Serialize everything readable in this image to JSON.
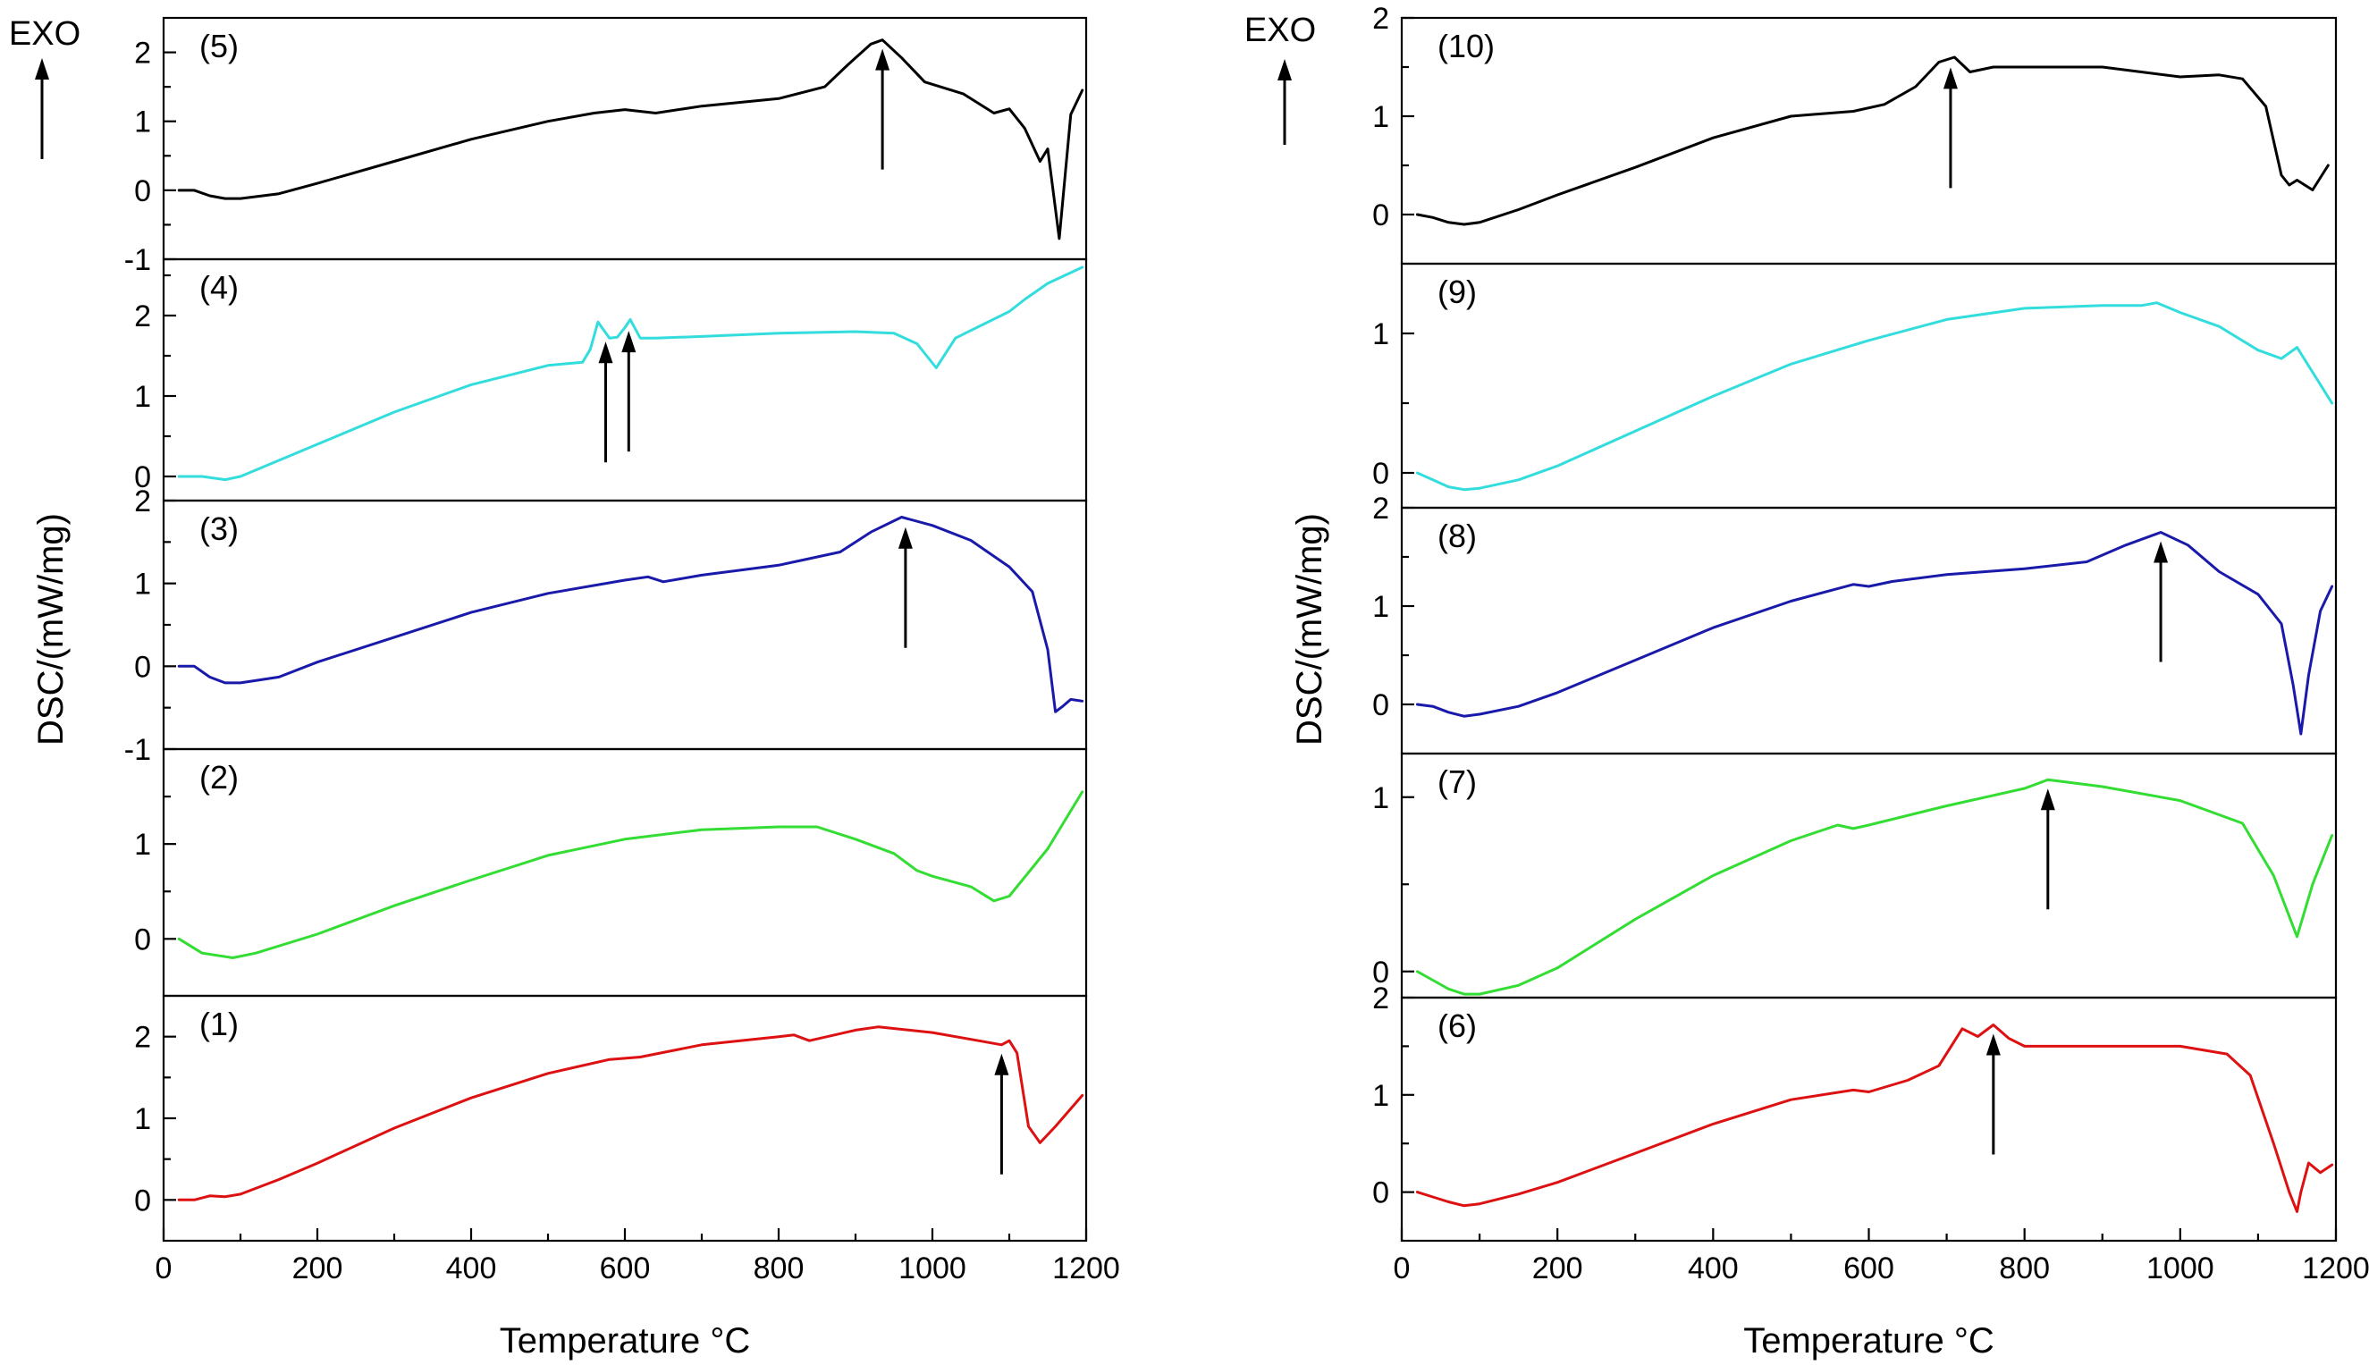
{
  "chart_data": [
    {
      "type": "line",
      "exo_label": "EXO",
      "xlabel": "Temperature °C",
      "ylabel": "DSC/(mW/mg)",
      "xlim": [
        0,
        1200
      ],
      "xticks": [
        "0",
        "200",
        "400",
        "600",
        "800",
        "1000",
        "1200"
      ],
      "panels": [
        {
          "label": "(5)",
          "color": "#000000",
          "ylim": [
            -1,
            2.5
          ],
          "yticks": [
            "-1",
            "0",
            "1",
            "2"
          ],
          "x": [
            20,
            40,
            60,
            80,
            100,
            150,
            200,
            300,
            400,
            500,
            560,
            600,
            640,
            700,
            800,
            860,
            890,
            920,
            935,
            960,
            990,
            1040,
            1080,
            1100,
            1120,
            1140,
            1150,
            1165,
            1180,
            1195
          ],
          "y": [
            0,
            0,
            -0.08,
            -0.12,
            -0.12,
            -0.05,
            0.1,
            0.42,
            0.74,
            1.0,
            1.12,
            1.17,
            1.12,
            1.22,
            1.33,
            1.5,
            1.82,
            2.12,
            2.18,
            1.92,
            1.57,
            1.4,
            1.12,
            1.18,
            0.9,
            0.42,
            0.6,
            -0.7,
            1.1,
            1.45
          ],
          "arrows": [
            935
          ]
        },
        {
          "label": "(4)",
          "color": "#33dddd",
          "ylim": [
            -0.3,
            2.7
          ],
          "yticks": [
            "0",
            "1",
            "2"
          ],
          "x": [
            20,
            50,
            80,
            100,
            150,
            200,
            300,
            400,
            500,
            545,
            555,
            565,
            580,
            590,
            600,
            607,
            620,
            640,
            700,
            800,
            900,
            950,
            980,
            1005,
            1030,
            1100,
            1120,
            1150,
            1195
          ],
          "y": [
            0,
            0,
            -0.04,
            0,
            0.2,
            0.4,
            0.8,
            1.14,
            1.38,
            1.42,
            1.58,
            1.92,
            1.72,
            1.73,
            1.85,
            1.95,
            1.72,
            1.72,
            1.74,
            1.78,
            1.8,
            1.78,
            1.65,
            1.35,
            1.72,
            2.05,
            2.2,
            2.4,
            2.6
          ],
          "arrows": [
            575,
            605
          ]
        },
        {
          "label": "(3)",
          "color": "#1a1aaa",
          "ylim": [
            -1,
            2
          ],
          "yticks": [
            "-1",
            "0",
            "1",
            "2"
          ],
          "x": [
            20,
            40,
            60,
            80,
            100,
            150,
            200,
            300,
            400,
            500,
            600,
            630,
            650,
            700,
            800,
            880,
            920,
            960,
            1000,
            1050,
            1100,
            1130,
            1150,
            1160,
            1170,
            1180,
            1195
          ],
          "y": [
            0,
            0,
            -0.13,
            -0.2,
            -0.2,
            -0.13,
            0.05,
            0.35,
            0.65,
            0.88,
            1.04,
            1.08,
            1.02,
            1.1,
            1.22,
            1.38,
            1.62,
            1.8,
            1.7,
            1.52,
            1.2,
            0.9,
            0.2,
            -0.55,
            -0.48,
            -0.4,
            -0.42
          ],
          "arrows": [
            965
          ]
        },
        {
          "label": "(2)",
          "color": "#33dd33",
          "ylim": [
            -0.6,
            2
          ],
          "yticks": [
            "0",
            "1"
          ],
          "x": [
            20,
            50,
            90,
            120,
            200,
            300,
            400,
            500,
            600,
            700,
            800,
            850,
            900,
            950,
            980,
            1000,
            1050,
            1080,
            1100,
            1150,
            1195
          ],
          "y": [
            0,
            -0.15,
            -0.2,
            -0.15,
            0.05,
            0.35,
            0.62,
            0.88,
            1.05,
            1.15,
            1.18,
            1.18,
            1.05,
            0.9,
            0.72,
            0.66,
            0.55,
            0.4,
            0.45,
            0.95,
            1.55
          ],
          "arrows": []
        },
        {
          "label": "(1)",
          "color": "#dd1111",
          "ylim": [
            -0.5,
            2.5
          ],
          "yticks": [
            "0",
            "1",
            "2"
          ],
          "x": [
            20,
            40,
            60,
            80,
            100,
            150,
            200,
            300,
            400,
            500,
            580,
            620,
            700,
            800,
            820,
            840,
            900,
            930,
            1000,
            1060,
            1090,
            1100,
            1110,
            1125,
            1140,
            1160,
            1195
          ],
          "y": [
            0,
            0,
            0.05,
            0.04,
            0.07,
            0.25,
            0.45,
            0.88,
            1.25,
            1.55,
            1.72,
            1.75,
            1.9,
            2.0,
            2.02,
            1.95,
            2.08,
            2.12,
            2.05,
            1.95,
            1.9,
            1.95,
            1.8,
            0.9,
            0.7,
            0.9,
            1.28
          ],
          "arrows": [
            1090
          ]
        }
      ]
    },
    {
      "type": "line",
      "exo_label": "EXO",
      "xlabel": "Temperature °C",
      "ylabel": "DSC/(mW/mg)",
      "xlim": [
        0,
        1200
      ],
      "xticks": [
        "0",
        "200",
        "400",
        "600",
        "800",
        "1000",
        "1200"
      ],
      "panels": [
        {
          "label": "(10)",
          "color": "#000000",
          "ylim": [
            -0.5,
            2
          ],
          "yticks": [
            "0",
            "1",
            "2"
          ],
          "x": [
            20,
            40,
            60,
            80,
            100,
            150,
            200,
            300,
            400,
            500,
            580,
            620,
            660,
            690,
            710,
            730,
            760,
            800,
            900,
            950,
            1000,
            1050,
            1080,
            1110,
            1130,
            1140,
            1150,
            1170,
            1190
          ],
          "y": [
            0,
            -0.03,
            -0.08,
            -0.1,
            -0.08,
            0.05,
            0.2,
            0.48,
            0.78,
            1.0,
            1.05,
            1.12,
            1.3,
            1.55,
            1.6,
            1.45,
            1.5,
            1.5,
            1.5,
            1.45,
            1.4,
            1.42,
            1.38,
            1.1,
            0.4,
            0.3,
            0.35,
            0.25,
            0.5
          ],
          "arrows": [
            705
          ]
        },
        {
          "label": "(9)",
          "color": "#33dddd",
          "ylim": [
            -0.25,
            1.5
          ],
          "yticks": [
            "0",
            "1"
          ],
          "x": [
            20,
            40,
            60,
            80,
            100,
            150,
            200,
            300,
            400,
            500,
            600,
            700,
            800,
            900,
            950,
            970,
            1000,
            1050,
            1100,
            1130,
            1150,
            1195
          ],
          "y": [
            0,
            -0.05,
            -0.1,
            -0.12,
            -0.11,
            -0.05,
            0.05,
            0.3,
            0.55,
            0.78,
            0.95,
            1.1,
            1.18,
            1.2,
            1.2,
            1.22,
            1.15,
            1.05,
            0.88,
            0.82,
            0.9,
            0.5
          ],
          "arrows": []
        },
        {
          "label": "(8)",
          "color": "#1a1aaa",
          "ylim": [
            -0.5,
            2
          ],
          "yticks": [
            "0",
            "1",
            "2"
          ],
          "x": [
            20,
            40,
            60,
            80,
            100,
            150,
            200,
            300,
            400,
            500,
            580,
            600,
            630,
            700,
            800,
            880,
            930,
            975,
            1010,
            1050,
            1100,
            1130,
            1145,
            1155,
            1165,
            1180,
            1195
          ],
          "y": [
            0,
            -0.02,
            -0.08,
            -0.12,
            -0.1,
            -0.02,
            0.12,
            0.45,
            0.78,
            1.05,
            1.22,
            1.2,
            1.25,
            1.32,
            1.38,
            1.45,
            1.62,
            1.75,
            1.62,
            1.35,
            1.12,
            0.82,
            0.2,
            -0.3,
            0.3,
            0.95,
            1.2
          ],
          "arrows": [
            975
          ]
        },
        {
          "label": "(7)",
          "color": "#33dd33",
          "ylim": [
            -0.15,
            1.25
          ],
          "yticks": [
            "0",
            "1"
          ],
          "x": [
            20,
            40,
            60,
            80,
            100,
            150,
            200,
            300,
            400,
            500,
            560,
            580,
            600,
            700,
            800,
            830,
            900,
            1000,
            1080,
            1120,
            1150,
            1170,
            1195
          ],
          "y": [
            0,
            -0.05,
            -0.1,
            -0.13,
            -0.13,
            -0.08,
            0.02,
            0.3,
            0.55,
            0.75,
            0.84,
            0.82,
            0.84,
            0.95,
            1.05,
            1.1,
            1.06,
            0.98,
            0.85,
            0.55,
            0.2,
            0.5,
            0.78
          ],
          "arrows": [
            830
          ]
        },
        {
          "label": "(6)",
          "color": "#dd1111",
          "ylim": [
            -0.5,
            2
          ],
          "yticks": [
            "0",
            "1",
            "2"
          ],
          "x": [
            20,
            40,
            60,
            80,
            100,
            150,
            200,
            300,
            400,
            500,
            580,
            600,
            650,
            690,
            720,
            740,
            760,
            780,
            800,
            900,
            1000,
            1060,
            1090,
            1120,
            1140,
            1150,
            1155,
            1165,
            1180,
            1195
          ],
          "y": [
            0,
            -0.05,
            -0.1,
            -0.14,
            -0.12,
            -0.02,
            0.1,
            0.4,
            0.7,
            0.95,
            1.05,
            1.03,
            1.15,
            1.3,
            1.68,
            1.6,
            1.72,
            1.58,
            1.5,
            1.5,
            1.5,
            1.42,
            1.2,
            0.5,
            0.0,
            -0.2,
            0.0,
            0.3,
            0.2,
            0.28
          ],
          "arrows": [
            760
          ]
        }
      ]
    }
  ]
}
